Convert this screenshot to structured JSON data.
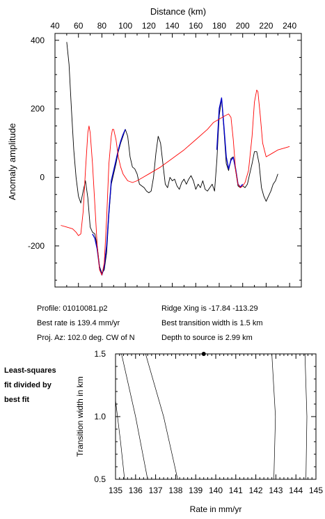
{
  "info": {
    "profile": "Profile: 01010081.p2",
    "ridge": "Ridge Xing is -17.84 -113.29",
    "best_rate": "Best rate is 139.4 mm/yr",
    "best_width": "Best transition width is 1.5 km",
    "proj": "Proj. Az: 102.0 deg. CW of N",
    "depth": "Depth to source is   2.99 km"
  },
  "note": {
    "line1": "Least-squares",
    "line2": "fit divided by",
    "line3": "best fit"
  },
  "colors": {
    "observed": "#000000",
    "window": "#0000cc",
    "model": "#ff0000"
  },
  "chart_data": [
    {
      "type": "line",
      "xlabel": "Distance (km)",
      "ylabel": "Anomaly amplitude",
      "xlim": [
        40,
        250
      ],
      "ylim": [
        -320,
        420
      ],
      "x_ticks": [
        40,
        60,
        80,
        100,
        120,
        140,
        160,
        180,
        200,
        220,
        240
      ],
      "y_ticks": [
        -200,
        0,
        200,
        400
      ],
      "x_axis_position": "top",
      "grid": false,
      "series": [
        {
          "key": "observed",
          "points": [
            [
              50,
              395
            ],
            [
              52,
              330
            ],
            [
              54,
              200
            ],
            [
              56,
              80
            ],
            [
              58,
              0
            ],
            [
              60,
              -55
            ],
            [
              62,
              -75
            ],
            [
              64,
              -40
            ],
            [
              66,
              -10
            ],
            [
              68,
              -60
            ],
            [
              70,
              -145
            ],
            [
              72,
              -160
            ],
            [
              74,
              -165
            ],
            [
              76,
              -200
            ],
            [
              78,
              -260
            ],
            [
              80,
              -280
            ],
            [
              82,
              -270
            ],
            [
              84,
              -220
            ],
            [
              86,
              -110
            ],
            [
              88,
              -20
            ],
            [
              90,
              10
            ],
            [
              92,
              40
            ],
            [
              94,
              75
            ],
            [
              96,
              100
            ],
            [
              98,
              120
            ],
            [
              100,
              140
            ],
            [
              102,
              120
            ],
            [
              104,
              60
            ],
            [
              106,
              30
            ],
            [
              108,
              25
            ],
            [
              110,
              10
            ],
            [
              112,
              -20
            ],
            [
              114,
              -25
            ],
            [
              116,
              -30
            ],
            [
              118,
              -40
            ],
            [
              120,
              -45
            ],
            [
              122,
              -40
            ],
            [
              124,
              0
            ],
            [
              126,
              70
            ],
            [
              128,
              120
            ],
            [
              130,
              100
            ],
            [
              132,
              40
            ],
            [
              134,
              -20
            ],
            [
              136,
              -30
            ],
            [
              138,
              0
            ],
            [
              140,
              -10
            ],
            [
              142,
              -5
            ],
            [
              144,
              -25
            ],
            [
              146,
              -35
            ],
            [
              148,
              -15
            ],
            [
              150,
              -5
            ],
            [
              152,
              -20
            ],
            [
              154,
              -5
            ],
            [
              156,
              5
            ],
            [
              158,
              -10
            ],
            [
              160,
              -35
            ],
            [
              162,
              -20
            ],
            [
              164,
              -30
            ],
            [
              166,
              -10
            ],
            [
              168,
              -35
            ],
            [
              170,
              -40
            ],
            [
              172,
              -30
            ],
            [
              174,
              -20
            ],
            [
              176,
              -40
            ],
            [
              178,
              50
            ],
            [
              180,
              180
            ],
            [
              182,
              230
            ],
            [
              184,
              140
            ],
            [
              186,
              40
            ],
            [
              188,
              20
            ],
            [
              190,
              55
            ],
            [
              192,
              60
            ],
            [
              194,
              20
            ],
            [
              196,
              -25
            ],
            [
              198,
              -30
            ],
            [
              200,
              -25
            ],
            [
              202,
              -30
            ],
            [
              204,
              -20
            ],
            [
              206,
              10
            ],
            [
              208,
              40
            ],
            [
              210,
              75
            ],
            [
              212,
              75
            ],
            [
              214,
              40
            ],
            [
              216,
              -30
            ],
            [
              218,
              -55
            ],
            [
              220,
              -70
            ],
            [
              222,
              -55
            ],
            [
              224,
              -40
            ],
            [
              226,
              -20
            ],
            [
              228,
              -10
            ],
            [
              230,
              10
            ]
          ]
        },
        {
          "key": "window",
          "points": [
            [
              72,
              -165
            ],
            [
              74,
              -178
            ],
            [
              76,
              -210
            ],
            [
              78,
              -265
            ],
            [
              80,
              -285
            ],
            [
              82,
              -260
            ],
            [
              84,
              -200
            ],
            [
              86,
              -100
            ],
            [
              88,
              -10
            ],
            [
              90,
              20
            ],
            [
              92,
              50
            ],
            [
              94,
              80
            ],
            [
              96,
              105
            ],
            [
              98,
              125
            ],
            [
              100,
              140
            ]
          ]
        },
        {
          "key": "window",
          "points": [
            [
              178,
              80
            ],
            [
              180,
              200
            ],
            [
              182,
              232
            ],
            [
              184,
              150
            ],
            [
              186,
              60
            ],
            [
              188,
              25
            ],
            [
              190,
              50
            ],
            [
              192,
              58
            ],
            [
              194,
              25
            ],
            [
              196,
              -20
            ],
            [
              198,
              -28
            ],
            [
              200,
              -20
            ]
          ]
        },
        {
          "key": "model",
          "points": [
            [
              45,
              -140
            ],
            [
              50,
              -145
            ],
            [
              55,
              -150
            ],
            [
              58,
              -160
            ],
            [
              60,
              -170
            ],
            [
              62,
              -165
            ],
            [
              64,
              -100
            ],
            [
              66,
              20
            ],
            [
              68,
              130
            ],
            [
              69,
              150
            ],
            [
              70,
              130
            ],
            [
              72,
              40
            ],
            [
              74,
              -80
            ],
            [
              76,
              -200
            ],
            [
              78,
              -270
            ],
            [
              80,
              -285
            ],
            [
              82,
              -250
            ],
            [
              84,
              -120
            ],
            [
              86,
              40
            ],
            [
              88,
              120
            ],
            [
              89,
              140
            ],
            [
              90,
              140
            ],
            [
              92,
              110
            ],
            [
              94,
              60
            ],
            [
              96,
              30
            ],
            [
              98,
              10
            ],
            [
              100,
              0
            ],
            [
              102,
              -10
            ],
            [
              106,
              -15
            ],
            [
              110,
              -10
            ],
            [
              115,
              0
            ],
            [
              120,
              10
            ],
            [
              130,
              30
            ],
            [
              140,
              55
            ],
            [
              150,
              80
            ],
            [
              160,
              110
            ],
            [
              170,
              140
            ],
            [
              175,
              160
            ],
            [
              180,
              170
            ],
            [
              185,
              180
            ],
            [
              188,
              185
            ],
            [
              190,
              175
            ],
            [
              192,
              110
            ],
            [
              194,
              20
            ],
            [
              196,
              -20
            ],
            [
              198,
              -30
            ],
            [
              200,
              -25
            ],
            [
              202,
              -15
            ],
            [
              205,
              20
            ],
            [
              208,
              120
            ],
            [
              210,
              220
            ],
            [
              212,
              255
            ],
            [
              213,
              250
            ],
            [
              215,
              180
            ],
            [
              217,
              100
            ],
            [
              220,
              60
            ],
            [
              225,
              70
            ],
            [
              230,
              80
            ],
            [
              235,
              85
            ],
            [
              240,
              90
            ]
          ]
        }
      ]
    },
    {
      "type": "line",
      "xlabel": "Rate in mm/yr",
      "ylabel": "Transition width in km",
      "xlim": [
        135,
        145
      ],
      "ylim": [
        0.5,
        1.5
      ],
      "x_ticks": [
        135,
        136,
        137,
        138,
        139,
        140,
        141,
        142,
        143,
        144,
        145
      ],
      "x_tick_labels": [
        "135",
        "136",
        "137",
        "138",
        "139",
        "140",
        "141",
        "142",
        "143",
        "144",
        "145"
      ],
      "y_ticks": [
        0.5,
        1.0,
        1.5
      ],
      "y_tick_labels": [
        "0.5",
        "1.0",
        "1.5"
      ],
      "best_point": [
        139.4,
        1.5
      ],
      "contours": [
        [
          [
            135.0,
            1.13
          ],
          [
            135.25,
            0.8
          ],
          [
            135.45,
            0.5
          ]
        ],
        [
          [
            135.3,
            1.5
          ],
          [
            136.0,
            1.0
          ],
          [
            136.6,
            0.5
          ]
        ],
        [
          [
            136.5,
            1.5
          ],
          [
            137.4,
            1.0
          ],
          [
            138.1,
            0.5
          ]
        ],
        [
          [
            142.8,
            1.5
          ],
          [
            142.98,
            1.0
          ],
          [
            142.9,
            0.5
          ]
        ],
        [
          [
            144.45,
            1.5
          ],
          [
            144.55,
            1.0
          ],
          [
            144.5,
            0.5
          ]
        ]
      ]
    }
  ]
}
